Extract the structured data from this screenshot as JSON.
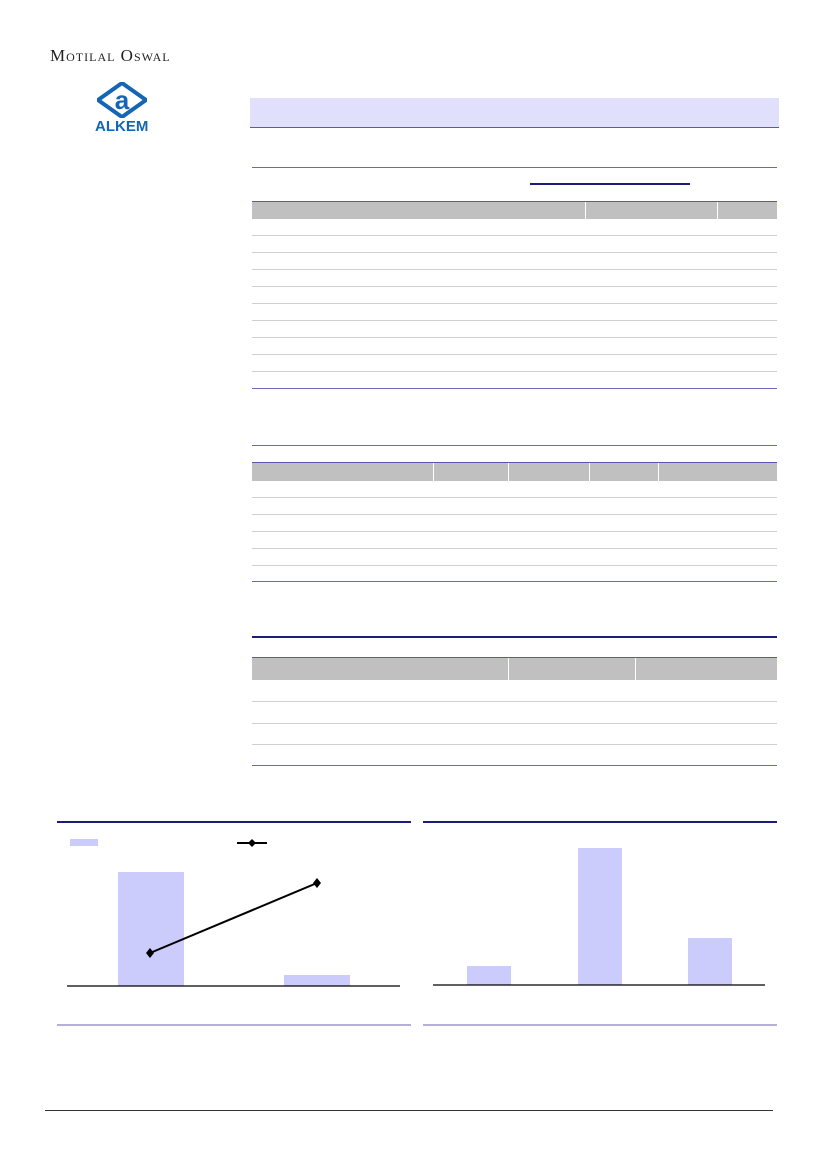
{
  "header": {
    "brand": "Motilal Oswal",
    "logo_text": "ALKEM",
    "logo_glyph": "a"
  },
  "colors": {
    "band": "#e0e0fd",
    "rule": "#6a6ab8",
    "table_header": "#c0c0c0",
    "bar": "#ccccfc",
    "logo": "#1565b5"
  },
  "tables": [
    {
      "rows": 10
    },
    {
      "rows": 6
    },
    {
      "rows": 4
    }
  ],
  "chart_data": [
    {
      "type": "bar",
      "series": [
        {
          "type": "bar",
          "values": [
            114,
            11
          ]
        },
        {
          "type": "line",
          "values": [
            33,
            103
          ]
        }
      ],
      "legend": "top-left"
    },
    {
      "type": "bar",
      "values": [
        19,
        137,
        47
      ]
    }
  ]
}
